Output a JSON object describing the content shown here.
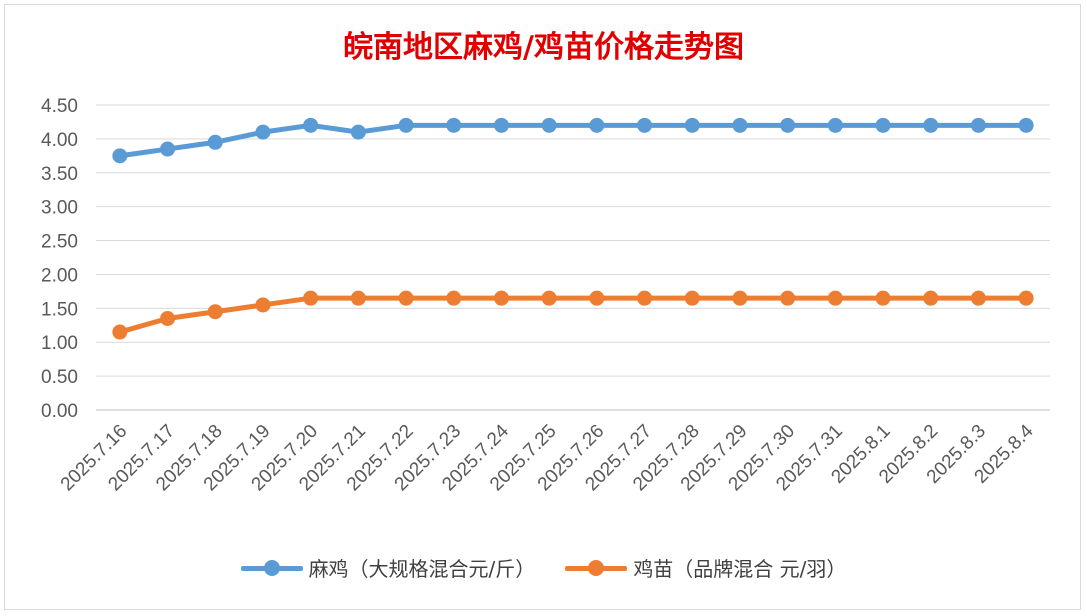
{
  "chart_data": {
    "type": "line",
    "title": "皖南地区麻鸡/鸡苗价格走势图",
    "xlabel": "",
    "ylabel": "",
    "ylim": [
      0,
      4.5
    ],
    "yticks": [
      "0.00",
      "0.50",
      "1.00",
      "1.50",
      "2.00",
      "2.50",
      "3.00",
      "3.50",
      "4.00",
      "4.50"
    ],
    "grid": true,
    "legend_position": "bottom",
    "categories": [
      "2025.7.16",
      "2025.7.17",
      "2025.7.18",
      "2025.7.19",
      "2025.7.20",
      "2025.7.21",
      "2025.7.22",
      "2025.7.23",
      "2025.7.24",
      "2025.7.25",
      "2025.7.26",
      "2025.7.27",
      "2025.7.28",
      "2025.7.29",
      "2025.7.30",
      "2025.7.31",
      "2025.8.1",
      "2025.8.2",
      "2025.8.3",
      "2025.8.4"
    ],
    "series": [
      {
        "name": "麻鸡（大规格混合元/斤）",
        "color": "#5b9bd5",
        "values": [
          3.75,
          3.85,
          3.95,
          4.1,
          4.2,
          4.1,
          4.2,
          4.2,
          4.2,
          4.2,
          4.2,
          4.2,
          4.2,
          4.2,
          4.2,
          4.2,
          4.2,
          4.2,
          4.2,
          4.2
        ]
      },
      {
        "name": "鸡苗（品牌混合 元/羽）",
        "color": "#ed7d31",
        "values": [
          1.15,
          1.35,
          1.45,
          1.55,
          1.65,
          1.65,
          1.65,
          1.65,
          1.65,
          1.65,
          1.65,
          1.65,
          1.65,
          1.65,
          1.65,
          1.65,
          1.65,
          1.65,
          1.65,
          1.65
        ]
      }
    ]
  }
}
